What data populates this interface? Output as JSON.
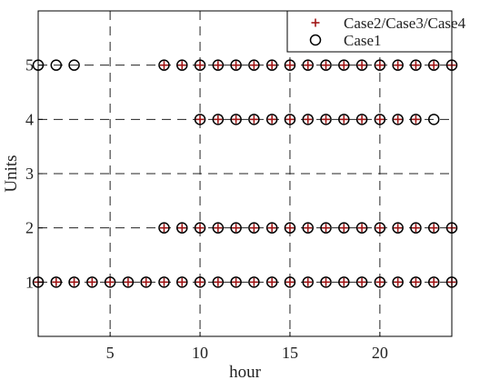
{
  "chart_data": {
    "type": "scatter",
    "title": "",
    "xlabel": "hour",
    "ylabel": "Units",
    "xlim": [
      1,
      24
    ],
    "ylim": [
      0,
      6
    ],
    "xticks": [
      5,
      10,
      15,
      20
    ],
    "yticks": [
      1,
      2,
      3,
      4,
      5
    ],
    "grid": "dashed",
    "legend_position": "top-right",
    "series": [
      {
        "name": "Case2/Case3/Case4",
        "marker": "plus",
        "color": "#a01515",
        "points": [
          {
            "x": 1,
            "y": 1
          },
          {
            "x": 2,
            "y": 1
          },
          {
            "x": 3,
            "y": 1
          },
          {
            "x": 4,
            "y": 1
          },
          {
            "x": 5,
            "y": 1
          },
          {
            "x": 6,
            "y": 1
          },
          {
            "x": 7,
            "y": 1
          },
          {
            "x": 8,
            "y": 1
          },
          {
            "x": 9,
            "y": 1
          },
          {
            "x": 10,
            "y": 1
          },
          {
            "x": 11,
            "y": 1
          },
          {
            "x": 12,
            "y": 1
          },
          {
            "x": 13,
            "y": 1
          },
          {
            "x": 14,
            "y": 1
          },
          {
            "x": 15,
            "y": 1
          },
          {
            "x": 16,
            "y": 1
          },
          {
            "x": 17,
            "y": 1
          },
          {
            "x": 18,
            "y": 1
          },
          {
            "x": 19,
            "y": 1
          },
          {
            "x": 20,
            "y": 1
          },
          {
            "x": 21,
            "y": 1
          },
          {
            "x": 22,
            "y": 1
          },
          {
            "x": 23,
            "y": 1
          },
          {
            "x": 24,
            "y": 1
          },
          {
            "x": 8,
            "y": 2
          },
          {
            "x": 9,
            "y": 2
          },
          {
            "x": 10,
            "y": 2
          },
          {
            "x": 11,
            "y": 2
          },
          {
            "x": 12,
            "y": 2
          },
          {
            "x": 13,
            "y": 2
          },
          {
            "x": 14,
            "y": 2
          },
          {
            "x": 15,
            "y": 2
          },
          {
            "x": 16,
            "y": 2
          },
          {
            "x": 17,
            "y": 2
          },
          {
            "x": 18,
            "y": 2
          },
          {
            "x": 19,
            "y": 2
          },
          {
            "x": 20,
            "y": 2
          },
          {
            "x": 21,
            "y": 2
          },
          {
            "x": 22,
            "y": 2
          },
          {
            "x": 23,
            "y": 2
          },
          {
            "x": 24,
            "y": 2
          },
          {
            "x": 10,
            "y": 4
          },
          {
            "x": 11,
            "y": 4
          },
          {
            "x": 12,
            "y": 4
          },
          {
            "x": 13,
            "y": 4
          },
          {
            "x": 14,
            "y": 4
          },
          {
            "x": 15,
            "y": 4
          },
          {
            "x": 16,
            "y": 4
          },
          {
            "x": 17,
            "y": 4
          },
          {
            "x": 18,
            "y": 4
          },
          {
            "x": 19,
            "y": 4
          },
          {
            "x": 20,
            "y": 4
          },
          {
            "x": 21,
            "y": 4
          },
          {
            "x": 22,
            "y": 4
          },
          {
            "x": 8,
            "y": 5
          },
          {
            "x": 9,
            "y": 5
          },
          {
            "x": 10,
            "y": 5
          },
          {
            "x": 11,
            "y": 5
          },
          {
            "x": 12,
            "y": 5
          },
          {
            "x": 13,
            "y": 5
          },
          {
            "x": 14,
            "y": 5
          },
          {
            "x": 15,
            "y": 5
          },
          {
            "x": 16,
            "y": 5
          },
          {
            "x": 17,
            "y": 5
          },
          {
            "x": 18,
            "y": 5
          },
          {
            "x": 19,
            "y": 5
          },
          {
            "x": 20,
            "y": 5
          },
          {
            "x": 21,
            "y": 5
          },
          {
            "x": 22,
            "y": 5
          },
          {
            "x": 23,
            "y": 5
          },
          {
            "x": 24,
            "y": 5
          }
        ]
      },
      {
        "name": "Case1",
        "marker": "circle",
        "color": "#000000",
        "points": [
          {
            "x": 1,
            "y": 1
          },
          {
            "x": 2,
            "y": 1
          },
          {
            "x": 3,
            "y": 1
          },
          {
            "x": 4,
            "y": 1
          },
          {
            "x": 5,
            "y": 1
          },
          {
            "x": 6,
            "y": 1
          },
          {
            "x": 7,
            "y": 1
          },
          {
            "x": 8,
            "y": 1
          },
          {
            "x": 9,
            "y": 1
          },
          {
            "x": 10,
            "y": 1
          },
          {
            "x": 11,
            "y": 1
          },
          {
            "x": 12,
            "y": 1
          },
          {
            "x": 13,
            "y": 1
          },
          {
            "x": 14,
            "y": 1
          },
          {
            "x": 15,
            "y": 1
          },
          {
            "x": 16,
            "y": 1
          },
          {
            "x": 17,
            "y": 1
          },
          {
            "x": 18,
            "y": 1
          },
          {
            "x": 19,
            "y": 1
          },
          {
            "x": 20,
            "y": 1
          },
          {
            "x": 21,
            "y": 1
          },
          {
            "x": 22,
            "y": 1
          },
          {
            "x": 23,
            "y": 1
          },
          {
            "x": 24,
            "y": 1
          },
          {
            "x": 8,
            "y": 2
          },
          {
            "x": 9,
            "y": 2
          },
          {
            "x": 10,
            "y": 2
          },
          {
            "x": 11,
            "y": 2
          },
          {
            "x": 12,
            "y": 2
          },
          {
            "x": 13,
            "y": 2
          },
          {
            "x": 14,
            "y": 2
          },
          {
            "x": 15,
            "y": 2
          },
          {
            "x": 16,
            "y": 2
          },
          {
            "x": 17,
            "y": 2
          },
          {
            "x": 18,
            "y": 2
          },
          {
            "x": 19,
            "y": 2
          },
          {
            "x": 20,
            "y": 2
          },
          {
            "x": 21,
            "y": 2
          },
          {
            "x": 22,
            "y": 2
          },
          {
            "x": 23,
            "y": 2
          },
          {
            "x": 24,
            "y": 2
          },
          {
            "x": 10,
            "y": 4
          },
          {
            "x": 11,
            "y": 4
          },
          {
            "x": 12,
            "y": 4
          },
          {
            "x": 13,
            "y": 4
          },
          {
            "x": 14,
            "y": 4
          },
          {
            "x": 15,
            "y": 4
          },
          {
            "x": 16,
            "y": 4
          },
          {
            "x": 17,
            "y": 4
          },
          {
            "x": 18,
            "y": 4
          },
          {
            "x": 19,
            "y": 4
          },
          {
            "x": 20,
            "y": 4
          },
          {
            "x": 21,
            "y": 4
          },
          {
            "x": 22,
            "y": 4
          },
          {
            "x": 23,
            "y": 4
          },
          {
            "x": 1,
            "y": 5
          },
          {
            "x": 2,
            "y": 5
          },
          {
            "x": 3,
            "y": 5
          },
          {
            "x": 8,
            "y": 5
          },
          {
            "x": 9,
            "y": 5
          },
          {
            "x": 10,
            "y": 5
          },
          {
            "x": 11,
            "y": 5
          },
          {
            "x": 12,
            "y": 5
          },
          {
            "x": 13,
            "y": 5
          },
          {
            "x": 14,
            "y": 5
          },
          {
            "x": 15,
            "y": 5
          },
          {
            "x": 16,
            "y": 5
          },
          {
            "x": 17,
            "y": 5
          },
          {
            "x": 18,
            "y": 5
          },
          {
            "x": 19,
            "y": 5
          },
          {
            "x": 20,
            "y": 5
          },
          {
            "x": 21,
            "y": 5
          },
          {
            "x": 22,
            "y": 5
          },
          {
            "x": 23,
            "y": 5
          },
          {
            "x": 24,
            "y": 5
          }
        ]
      }
    ]
  }
}
